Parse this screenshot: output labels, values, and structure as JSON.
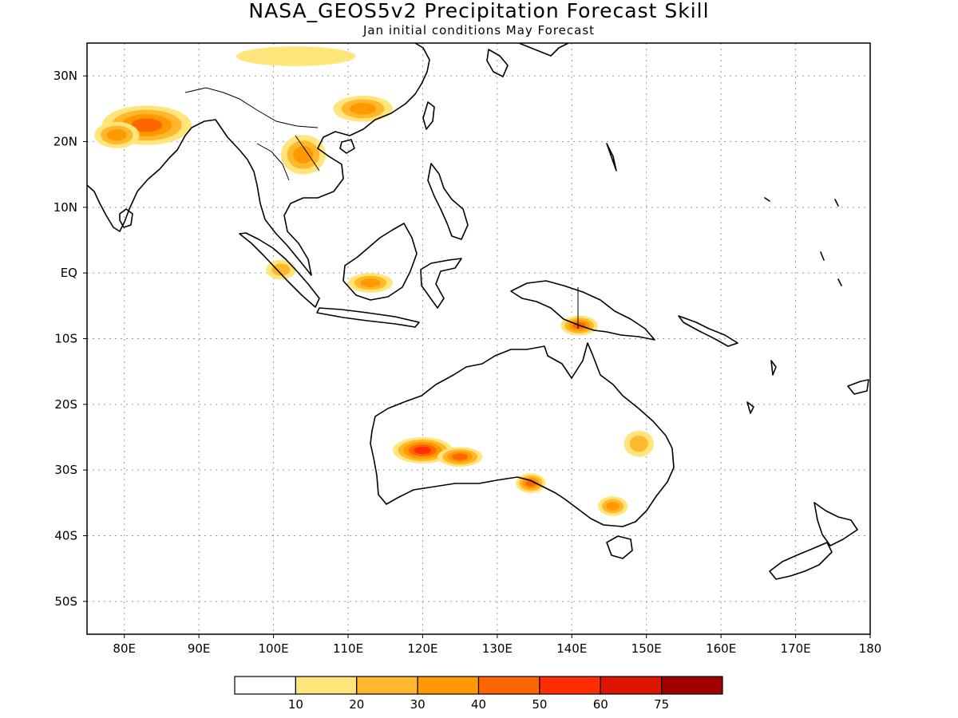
{
  "header": {
    "title": "NASA_GEOS5v2 Precipitation Forecast Skill",
    "subtitle": "Jan initial conditions  May Forecast"
  },
  "map": {
    "lon_range": [
      75,
      180
    ],
    "lat_range": [
      -55,
      35
    ],
    "lon_ticks": [
      {
        "value": 80,
        "label": "80E"
      },
      {
        "value": 90,
        "label": "90E"
      },
      {
        "value": 100,
        "label": "100E"
      },
      {
        "value": 110,
        "label": "110E"
      },
      {
        "value": 120,
        "label": "120E"
      },
      {
        "value": 130,
        "label": "130E"
      },
      {
        "value": 140,
        "label": "140E"
      },
      {
        "value": 150,
        "label": "150E"
      },
      {
        "value": 160,
        "label": "160E"
      },
      {
        "value": 170,
        "label": "170E"
      },
      {
        "value": 180,
        "label": "180"
      }
    ],
    "lat_ticks": [
      {
        "value": 30,
        "label": "30N"
      },
      {
        "value": 20,
        "label": "20N"
      },
      {
        "value": 10,
        "label": "10N"
      },
      {
        "value": 0,
        "label": "EQ"
      },
      {
        "value": -10,
        "label": "10S"
      },
      {
        "value": -20,
        "label": "20S"
      },
      {
        "value": -30,
        "label": "30S"
      },
      {
        "value": -40,
        "label": "40S"
      },
      {
        "value": -50,
        "label": "50S"
      }
    ],
    "gridlines": true,
    "skill_regions": [
      {
        "region": "northern-india",
        "lon": 83,
        "lat": 22.5,
        "rx": 6,
        "ry": 3,
        "level": 40
      },
      {
        "region": "india-west",
        "lon": 79,
        "lat": 21,
        "rx": 3,
        "ry": 2,
        "level": 30
      },
      {
        "region": "southern-china",
        "lon": 112,
        "lat": 25,
        "rx": 4,
        "ry": 2,
        "level": 30
      },
      {
        "region": "indochina",
        "lon": 104,
        "lat": 18,
        "rx": 3,
        "ry": 3,
        "level": 30
      },
      {
        "region": "himalaya-strip",
        "lon": 103,
        "lat": 33,
        "rx": 8,
        "ry": 1.5,
        "level": 10
      },
      {
        "region": "sumatra",
        "lon": 101,
        "lat": 0.5,
        "rx": 2,
        "ry": 1.5,
        "level": 20
      },
      {
        "region": "borneo-south",
        "lon": 113,
        "lat": -1.5,
        "rx": 3,
        "ry": 1.5,
        "level": 30
      },
      {
        "region": "new-guinea",
        "lon": 141,
        "lat": -8,
        "rx": 2.5,
        "ry": 1.5,
        "level": 40
      },
      {
        "region": "western-australia",
        "lon": 120,
        "lat": -27,
        "rx": 4,
        "ry": 2,
        "level": 50
      },
      {
        "region": "central-australia",
        "lon": 125,
        "lat": -28,
        "rx": 3,
        "ry": 1.5,
        "level": 40
      },
      {
        "region": "south-australia",
        "lon": 134.5,
        "lat": -32,
        "rx": 2,
        "ry": 1.5,
        "level": 40
      },
      {
        "region": "southeast-australia",
        "lon": 145.5,
        "lat": -35.5,
        "rx": 2,
        "ry": 1.5,
        "level": 30
      },
      {
        "region": "queensland-east",
        "lon": 149,
        "lat": -26,
        "rx": 2,
        "ry": 2,
        "level": 20
      }
    ]
  },
  "colorbar": {
    "colors": [
      "#ffffff",
      "#ffe57a",
      "#ffb82e",
      "#ff9900",
      "#ff6600",
      "#ff2e00",
      "#dc1400",
      "#a00000"
    ],
    "labels": [
      "10",
      "20",
      "30",
      "40",
      "50",
      "60",
      "75"
    ]
  }
}
